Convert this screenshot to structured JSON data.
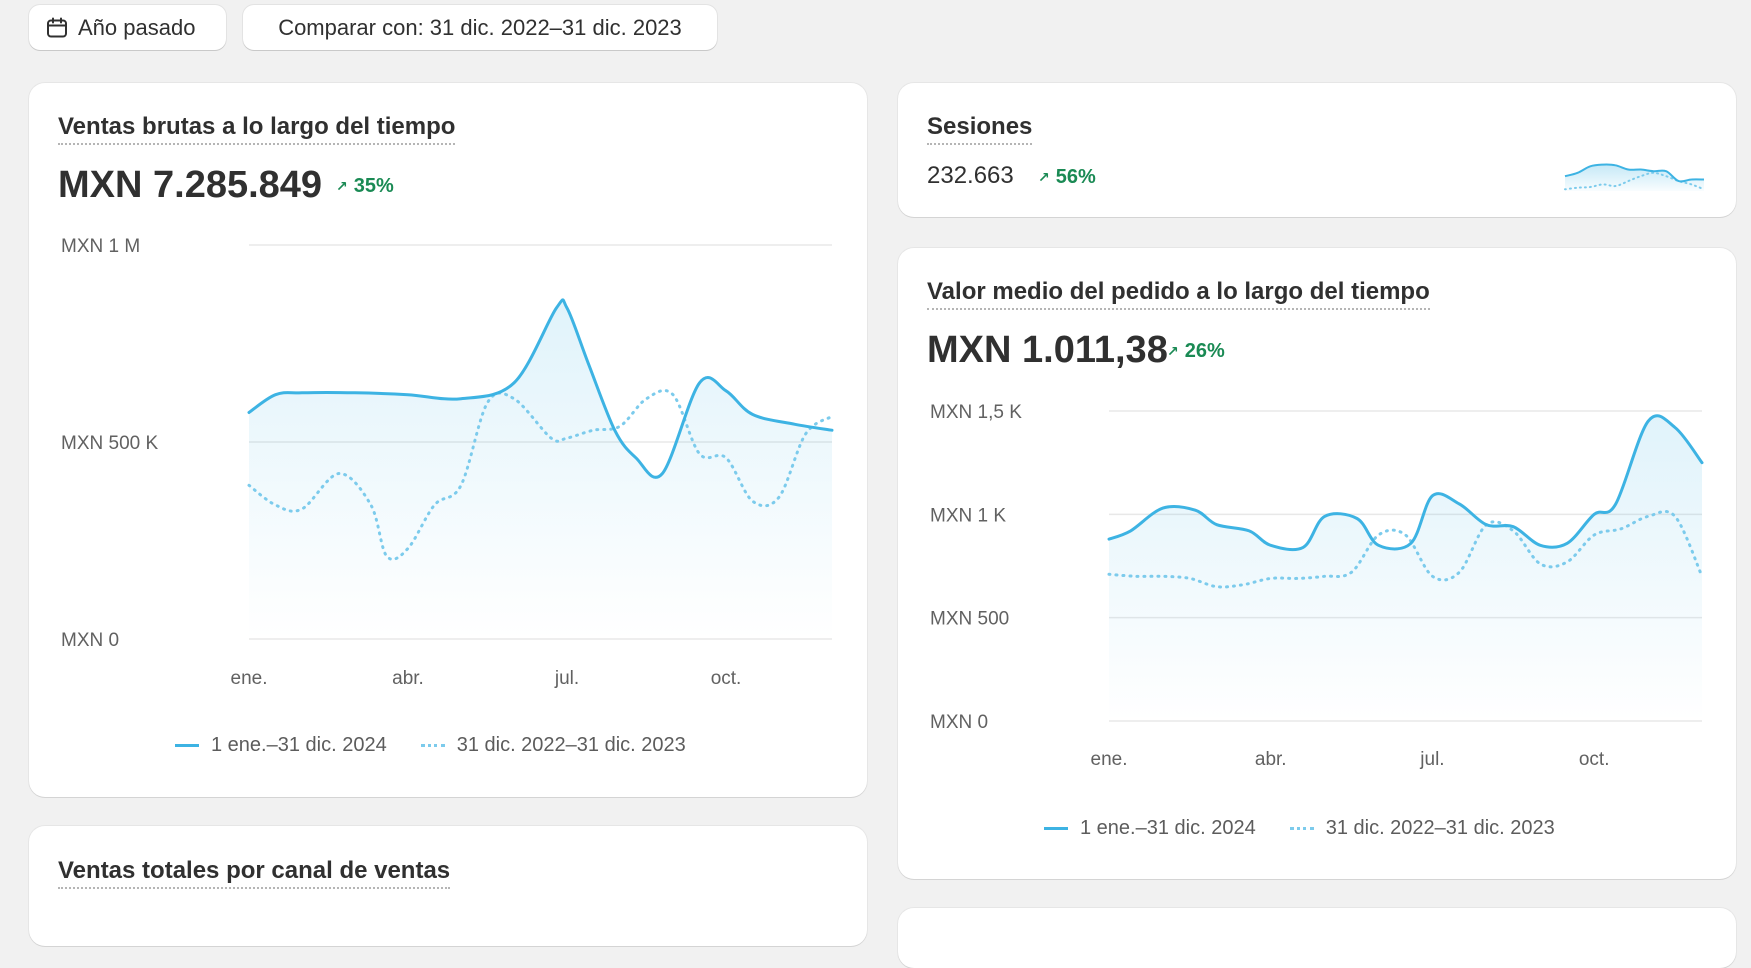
{
  "toolbar": {
    "period_icon": "calendar-icon",
    "period_label": "Año pasado",
    "compare_label": "Comparar con: 31 dic. 2022–31 dic. 2023"
  },
  "gross_sales": {
    "title": "Ventas brutas a lo largo del tiempo",
    "value": "MXN 7.285.849",
    "delta": "35%"
  },
  "sessions": {
    "title": "Sesiones",
    "value": "232.663",
    "delta": "56%"
  },
  "aov": {
    "title": "Valor medio del pedido a lo largo del tiempo",
    "value": "MXN 1.011,38",
    "delta": "26%"
  },
  "channel": {
    "title": "Ventas totales por canal de ventas"
  },
  "legend": {
    "current": "1 ene.–31 dic. 2024",
    "previous": "31 dic. 2022–31 dic. 2023"
  },
  "colors": {
    "current": "#3db3e3",
    "previous": "#7ccbec",
    "positive": "#1a8a54"
  },
  "chart_data": [
    {
      "id": "gross_sales_chart",
      "type": "area",
      "title": "Ventas brutas a lo largo del tiempo",
      "y_ticks": [
        "MXN 0",
        "MXN 500 K",
        "MXN 1 M"
      ],
      "y_tick_values": [
        0,
        500000,
        1000000
      ],
      "ylim": [
        0,
        1000000
      ],
      "x_ticks": [
        "ene.",
        "abr.",
        "jul.",
        "oct."
      ],
      "x_tick_positions": [
        0,
        3,
        6,
        9
      ],
      "xlim": [
        0,
        11
      ],
      "series": [
        {
          "name": "1 ene.–31 dic. 2024",
          "style": "solid",
          "x": [
            0,
            0.5,
            1,
            2,
            3,
            4,
            5,
            5.8,
            6,
            6.4,
            6.9,
            7.3,
            7.8,
            8.5,
            9,
            9.5,
            10.3,
            11
          ],
          "values": [
            575000,
            620000,
            625000,
            625000,
            620000,
            610000,
            650000,
            840000,
            840000,
            700000,
            530000,
            460000,
            420000,
            650000,
            630000,
            570000,
            545000,
            530000
          ]
        },
        {
          "name": "31 dic. 2022–31 dic. 2023",
          "style": "dotted",
          "x": [
            0,
            0.5,
            1,
            1.7,
            2.3,
            2.6,
            3,
            3.5,
            4,
            4.5,
            5,
            5.7,
            6,
            6.5,
            7,
            7.5,
            8,
            8.5,
            9,
            9.5,
            10,
            10.5,
            11
          ],
          "values": [
            390000,
            340000,
            330000,
            420000,
            340000,
            210000,
            230000,
            340000,
            390000,
            600000,
            610000,
            510000,
            510000,
            530000,
            540000,
            610000,
            620000,
            470000,
            460000,
            350000,
            360000,
            520000,
            565000
          ]
        }
      ]
    },
    {
      "id": "sessions_sparkline",
      "type": "area",
      "title": "Sesiones",
      "xlim": [
        0,
        11
      ],
      "series": [
        {
          "name": "1 ene.–31 dic. 2024",
          "style": "solid",
          "x": [
            0,
            1,
            2,
            3,
            4,
            5,
            6,
            7,
            8,
            9,
            10,
            11
          ],
          "values": [
            0.45,
            0.55,
            0.75,
            0.8,
            0.78,
            0.65,
            0.65,
            0.6,
            0.6,
            0.3,
            0.35,
            0.35
          ]
        },
        {
          "name": "31 dic. 2022–31 dic. 2023",
          "style": "dotted",
          "x": [
            0,
            1,
            2,
            3,
            4,
            5,
            6,
            7,
            8,
            9,
            10,
            11
          ],
          "values": [
            0.05,
            0.1,
            0.12,
            0.2,
            0.15,
            0.3,
            0.45,
            0.55,
            0.45,
            0.3,
            0.2,
            0.05
          ]
        }
      ]
    },
    {
      "id": "aov_chart",
      "type": "area",
      "title": "Valor medio del pedido a lo largo del tiempo",
      "y_ticks": [
        "MXN 0",
        "MXN 500",
        "MXN 1 K",
        "MXN 1,5 K"
      ],
      "y_tick_values": [
        0,
        500,
        1000,
        1500
      ],
      "ylim": [
        0,
        1500
      ],
      "x_ticks": [
        "ene.",
        "abr.",
        "jul.",
        "oct."
      ],
      "x_tick_positions": [
        0,
        3,
        6,
        9
      ],
      "xlim": [
        0,
        11
      ],
      "series": [
        {
          "name": "1 ene.–31 dic. 2024",
          "style": "solid",
          "x": [
            0,
            0.4,
            1,
            1.6,
            2,
            2.6,
            3,
            3.6,
            4,
            4.6,
            5,
            5.6,
            6,
            6.5,
            7,
            7.5,
            8,
            8.5,
            9,
            9.4,
            10,
            10.5,
            11
          ],
          "values": [
            880,
            920,
            1030,
            1020,
            950,
            920,
            850,
            840,
            990,
            980,
            850,
            860,
            1090,
            1050,
            950,
            940,
            850,
            860,
            1000,
            1050,
            1450,
            1420,
            1250
          ]
        },
        {
          "name": "31 dic. 2022–31 dic. 2023",
          "style": "dotted",
          "x": [
            0,
            0.5,
            1,
            1.5,
            2,
            2.5,
            3,
            3.5,
            4,
            4.5,
            5,
            5.5,
            6,
            6.5,
            7,
            7.5,
            8,
            8.5,
            9,
            9.5,
            10,
            10.5,
            11
          ],
          "values": [
            710,
            700,
            700,
            690,
            650,
            660,
            690,
            690,
            700,
            720,
            900,
            900,
            700,
            720,
            950,
            920,
            760,
            770,
            900,
            930,
            990,
            990,
            700
          ]
        }
      ]
    }
  ]
}
